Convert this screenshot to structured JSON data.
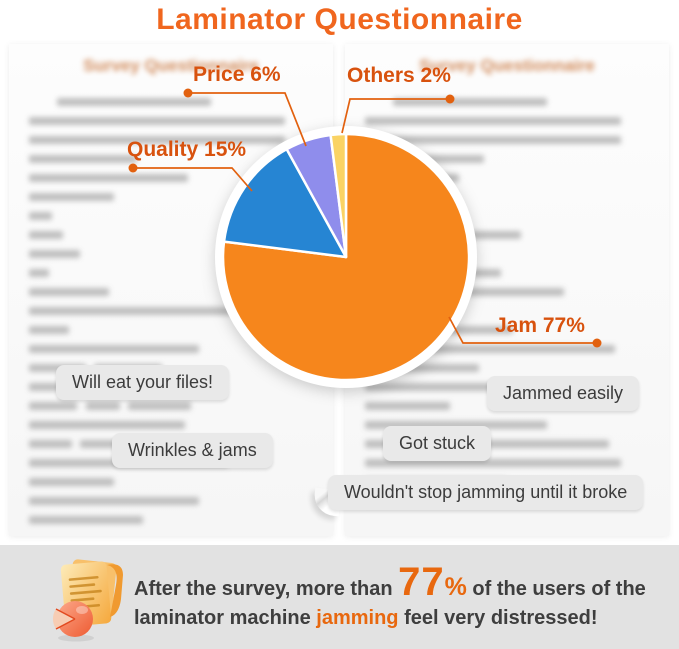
{
  "title": "Laminator Questionnaire",
  "accent_color": "#F0661E",
  "label_color": "#D8520E",
  "panels": {
    "heading": "Survey Questionnaire"
  },
  "chart_data": {
    "type": "pie",
    "title": "Laminator Questionnaire",
    "start_angle_deg": 0,
    "direction": "clockwise",
    "labels_format": "{label} {value}%",
    "slices": [
      {
        "label": "Jam",
        "value": 77,
        "color": "#F6861C"
      },
      {
        "label": "Quality",
        "value": 15,
        "color": "#2685D3"
      },
      {
        "label": "Price",
        "value": 6,
        "color": "#8F8DEC"
      },
      {
        "label": "Others",
        "value": 2,
        "color": "#FAD364"
      }
    ]
  },
  "labels": {
    "jam": "Jam 77%",
    "quality": "Quality 15%",
    "price": "Price 6%",
    "others": "Others 2%"
  },
  "bubbles": [
    {
      "text": "Will eat your files!"
    },
    {
      "text": "Wrinkles & jams"
    },
    {
      "text": "Jammed easily"
    },
    {
      "text": "Got stuck"
    },
    {
      "text": "Wouldn't stop jamming until it broke"
    }
  ],
  "banner": {
    "line1_prefix": "After the survey, more than ",
    "big_number": "77",
    "percent_sign": "%",
    "line1_suffix": " of the users of the",
    "line2_prefix": "laminator machine ",
    "highlight": "jamming",
    "line2_suffix": " feel very distressed!"
  }
}
